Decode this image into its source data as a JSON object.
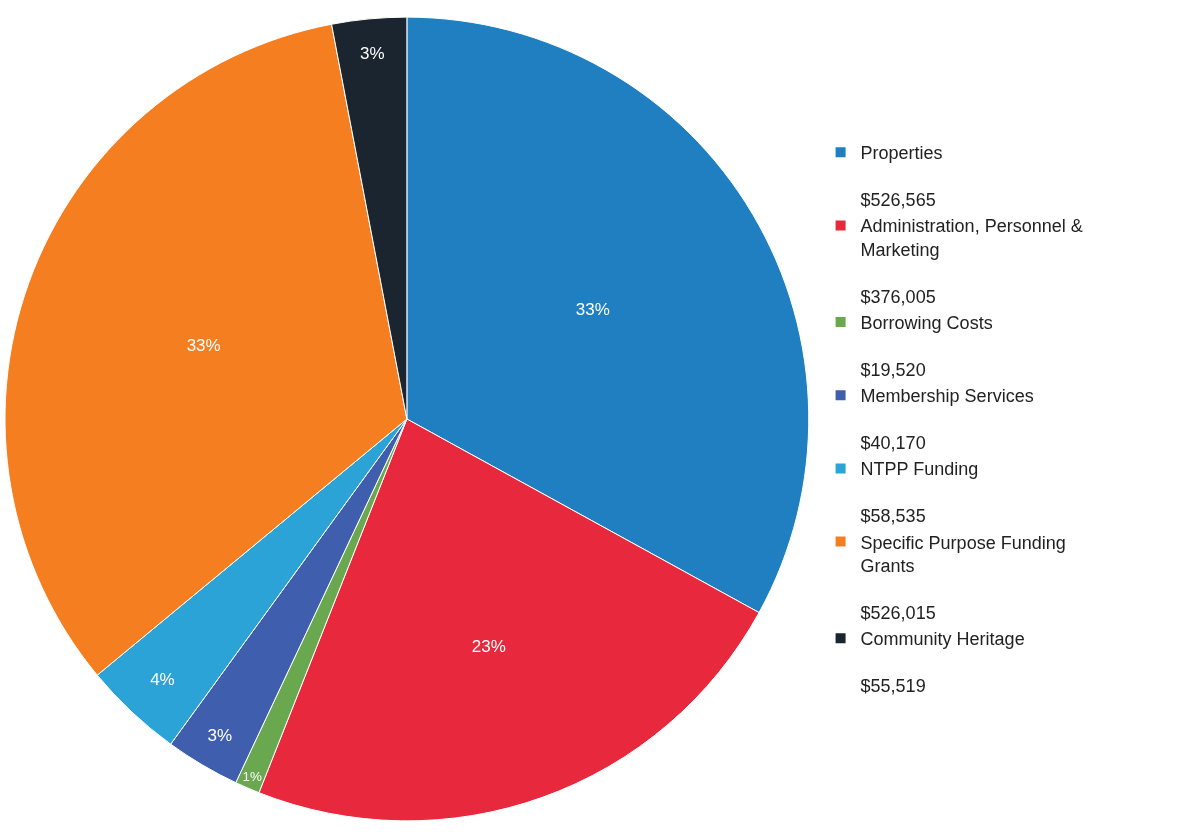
{
  "chart_data": {
    "type": "pie",
    "categories": [
      "Properties",
      "Administration, Personnel & Marketing",
      "Borrowing Costs",
      "Membership Services",
      "NTPP Funding",
      "Specific Purpose Funding Grants",
      "Community Heritage"
    ],
    "values": [
      33,
      23,
      1,
      3,
      4,
      33,
      3
    ],
    "value_labels": [
      "33%",
      "23%",
      "1%",
      "3%",
      "4%",
      "33%",
      "3%"
    ],
    "colors": [
      "#1f7fc0",
      "#e8283c",
      "#6aa84f",
      "#3f5fae",
      "#2ba3d6",
      "#f57f20",
      "#1a2530"
    ],
    "annotations": [
      "$526,565",
      "$376,005",
      "$19,520",
      "$40,170",
      "$58,535",
      "$526,015",
      "$55,519"
    ],
    "legend": "right"
  }
}
